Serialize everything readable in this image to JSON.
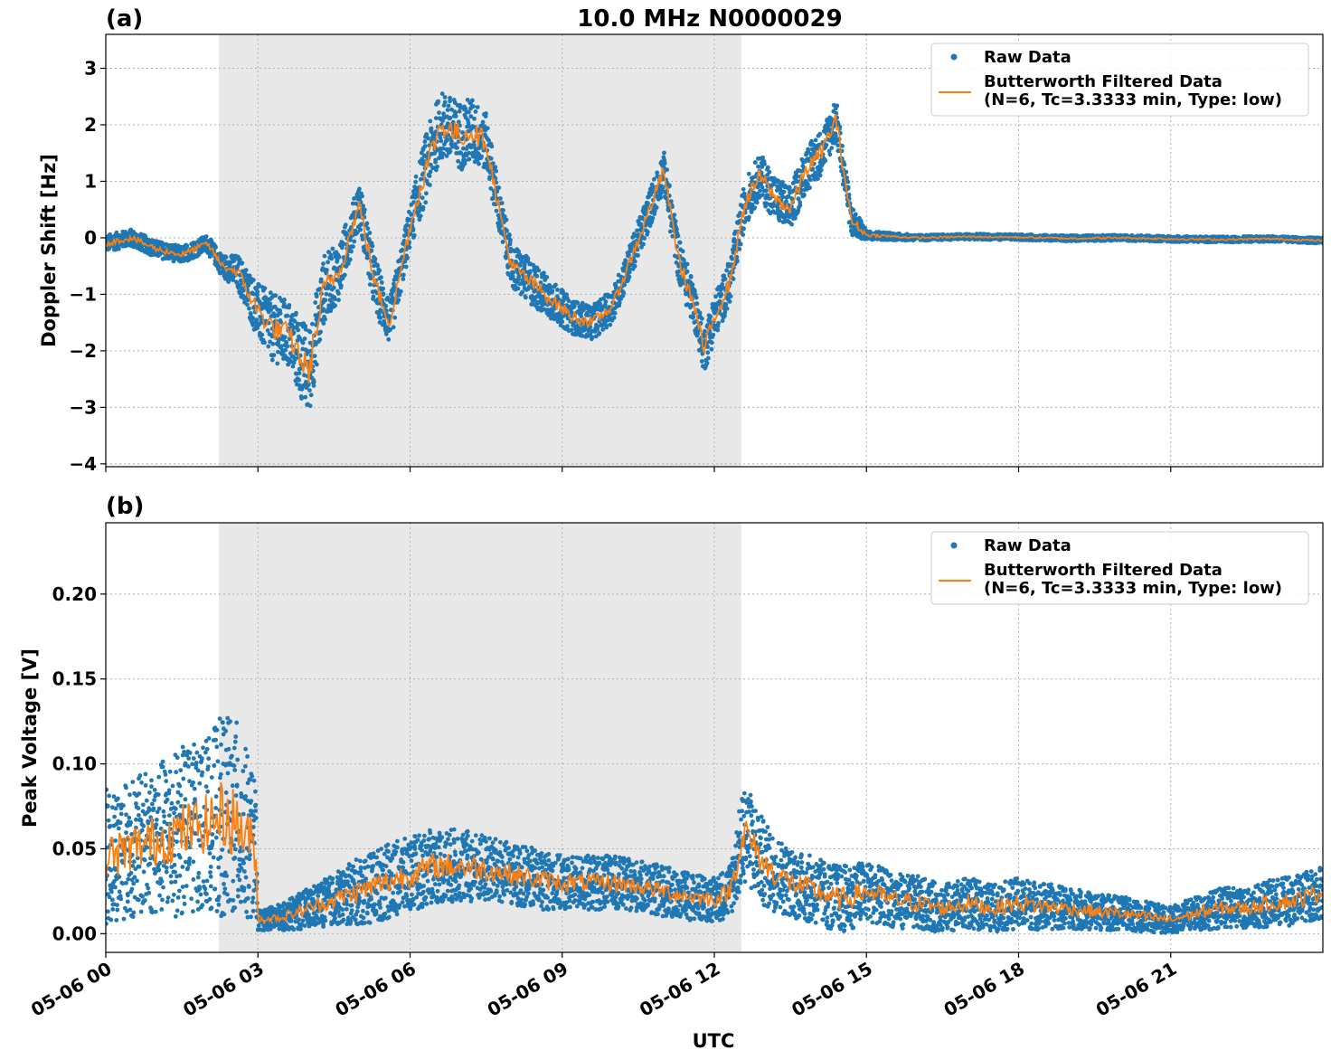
{
  "figure": {
    "title": "10.0 MHz N0000029",
    "xlabel": "UTC"
  },
  "chart_data": [
    {
      "type": "scatter",
      "panel_label": "(a)",
      "ylabel": "Doppler Shift [Hz]",
      "ylim": [
        -4.05,
        3.6
      ],
      "yticks": [
        3,
        2,
        1,
        0,
        -1,
        -2,
        -3,
        -4
      ],
      "ytick_labels": [
        "3",
        "2",
        "1",
        "0",
        "−1",
        "−2",
        "−3",
        "−4"
      ],
      "xlim_hours": [
        0,
        24
      ],
      "xtick_labels": [],
      "grid": true,
      "shaded_region_hours": [
        2.23,
        12.53
      ],
      "legend_position": "upper right",
      "series": [
        {
          "name": "Raw Data",
          "style": "dots",
          "color": "#1f77b4",
          "x_hours": [
            0,
            0.5,
            1,
            1.5,
            2,
            2.3,
            2.6,
            3,
            3.3,
            3.6,
            4,
            4.3,
            4.6,
            5,
            5.3,
            5.6,
            6,
            6.3,
            6.6,
            7,
            7.2,
            7.5,
            7.8,
            8,
            8.4,
            8.8,
            9.2,
            9.6,
            10,
            10.3,
            10.6,
            11,
            11.3,
            11.6,
            11.8,
            12,
            12.3,
            12.6,
            12.9,
            13.2,
            13.5,
            13.8,
            14.1,
            14.4,
            14.7,
            15,
            16,
            17,
            18,
            19,
            20,
            21,
            22,
            23,
            24
          ],
          "y": [
            -0.1,
            0,
            -0.2,
            -0.3,
            -0.1,
            -0.5,
            -0.6,
            -1.3,
            -1.6,
            -1.7,
            -2.4,
            -0.9,
            -0.6,
            0.6,
            -0.8,
            -1.5,
            0.2,
            1.2,
            2.0,
            1.8,
            1.9,
            1.7,
            0.3,
            -0.5,
            -0.8,
            -1.1,
            -1.4,
            -1.5,
            -1.2,
            -0.5,
            0.2,
            1.2,
            -0.4,
            -1.2,
            -2.0,
            -1.4,
            -0.8,
            0.6,
            1.1,
            0.7,
            0.5,
            1.2,
            1.5,
            2.1,
            0.3,
            0.05,
            0,
            0.02,
            0.01,
            -0.01,
            0,
            -0.02,
            -0.03,
            -0.02,
            -0.05
          ],
          "spread": [
            0.15,
            0.15,
            0.15,
            0.15,
            0.15,
            0.2,
            0.3,
            0.5,
            0.6,
            0.6,
            0.8,
            0.6,
            0.5,
            0.4,
            0.5,
            0.4,
            0.4,
            0.6,
            0.6,
            0.6,
            0.6,
            0.5,
            0.4,
            0.4,
            0.4,
            0.35,
            0.3,
            0.3,
            0.3,
            0.3,
            0.35,
            0.35,
            0.4,
            0.4,
            0.4,
            0.4,
            0.4,
            0.4,
            0.4,
            0.4,
            0.4,
            0.4,
            0.4,
            0.4,
            0.3,
            0.08,
            0.05,
            0.05,
            0.05,
            0.05,
            0.05,
            0.05,
            0.05,
            0.05,
            0.05
          ]
        },
        {
          "name": "Butterworth Filtered Data\n(N=6, Tc=3.3333 min, Type: low)",
          "style": "line",
          "color": "#ff7f0e",
          "x_hours": [
            0,
            0.5,
            1,
            1.5,
            2,
            2.3,
            2.6,
            3,
            3.3,
            3.6,
            4,
            4.3,
            4.6,
            5,
            5.3,
            5.6,
            6,
            6.3,
            6.6,
            7,
            7.2,
            7.5,
            7.8,
            8,
            8.4,
            8.8,
            9.2,
            9.6,
            10,
            10.3,
            10.6,
            11,
            11.3,
            11.6,
            11.8,
            12,
            12.3,
            12.6,
            12.9,
            13.2,
            13.5,
            13.8,
            14.1,
            14.4,
            14.7,
            15,
            16,
            17,
            18,
            19,
            20,
            21,
            22,
            23,
            24
          ],
          "y": [
            -0.1,
            0,
            -0.2,
            -0.3,
            -0.1,
            -0.5,
            -0.6,
            -1.3,
            -1.6,
            -1.7,
            -2.4,
            -0.9,
            -0.6,
            0.6,
            -0.8,
            -1.5,
            0.2,
            1.2,
            2.0,
            1.8,
            1.9,
            1.7,
            0.3,
            -0.5,
            -0.8,
            -1.1,
            -1.4,
            -1.5,
            -1.2,
            -0.5,
            0.2,
            1.2,
            -0.4,
            -1.2,
            -2.0,
            -1.4,
            -0.8,
            0.6,
            1.1,
            0.7,
            0.5,
            1.2,
            1.5,
            2.1,
            0.3,
            0.05,
            0,
            0.02,
            0.01,
            -0.01,
            0,
            -0.02,
            -0.03,
            -0.02,
            -0.05
          ]
        }
      ]
    },
    {
      "type": "scatter",
      "panel_label": "(b)",
      "ylabel": "Peak Voltage [V]",
      "ylim": [
        -0.011,
        0.242
      ],
      "yticks": [
        0.2,
        0.15,
        0.1,
        0.05,
        0.0
      ],
      "ytick_labels": [
        "0.20",
        "0.15",
        "0.10",
        "0.05",
        "0.00"
      ],
      "xlim_hours": [
        0,
        24
      ],
      "xticks_hours": [
        0,
        3,
        6,
        9,
        12,
        15,
        18,
        21
      ],
      "xtick_labels": [
        "05-06 00",
        "05-06 03",
        "05-06 06",
        "05-06 09",
        "05-06 12",
        "05-06 15",
        "05-06 18",
        "05-06 21"
      ],
      "grid": true,
      "shaded_region_hours": [
        2.23,
        12.53
      ],
      "legend_position": "upper right",
      "series": [
        {
          "name": "Raw Data",
          "style": "dots",
          "color": "#1f77b4",
          "x_hours": [
            0,
            0.5,
            1,
            1.5,
            2,
            2.3,
            2.6,
            2.95,
            3.0,
            3.5,
            4,
            4.5,
            5,
            5.5,
            6,
            6.5,
            7,
            7.5,
            8,
            8.5,
            9,
            9.5,
            10,
            10.5,
            11,
            11.5,
            12,
            12.3,
            12.6,
            13,
            13.5,
            14,
            14.5,
            15,
            15.5,
            16,
            16.5,
            17,
            17.5,
            18,
            18.5,
            19,
            19.5,
            20,
            20.5,
            21,
            21.5,
            22,
            22.5,
            23,
            23.5,
            24
          ],
          "y": [
            0.045,
            0.05,
            0.055,
            0.06,
            0.065,
            0.07,
            0.065,
            0.05,
            0.008,
            0.01,
            0.015,
            0.02,
            0.025,
            0.03,
            0.035,
            0.04,
            0.04,
            0.038,
            0.035,
            0.032,
            0.03,
            0.03,
            0.03,
            0.028,
            0.025,
            0.022,
            0.02,
            0.025,
            0.06,
            0.04,
            0.03,
            0.025,
            0.02,
            0.025,
            0.02,
            0.018,
            0.015,
            0.018,
            0.015,
            0.018,
            0.016,
            0.015,
            0.013,
            0.012,
            0.01,
            0.008,
            0.012,
            0.015,
            0.015,
            0.018,
            0.02,
            0.025
          ],
          "spread": [
            0.04,
            0.04,
            0.045,
            0.05,
            0.05,
            0.06,
            0.06,
            0.04,
            0.006,
            0.008,
            0.012,
            0.015,
            0.02,
            0.022,
            0.022,
            0.022,
            0.022,
            0.02,
            0.018,
            0.018,
            0.016,
            0.016,
            0.016,
            0.015,
            0.015,
            0.014,
            0.013,
            0.016,
            0.03,
            0.025,
            0.02,
            0.02,
            0.02,
            0.018,
            0.016,
            0.016,
            0.014,
            0.015,
            0.014,
            0.015,
            0.014,
            0.012,
            0.011,
            0.01,
            0.009,
            0.008,
            0.01,
            0.012,
            0.012,
            0.014,
            0.015,
            0.016
          ]
        },
        {
          "name": "Butterworth Filtered Data\n(N=6, Tc=3.3333 min, Type: low)",
          "style": "line",
          "color": "#ff7f0e",
          "x_hours": [
            0,
            0.5,
            1,
            1.5,
            2,
            2.3,
            2.6,
            2.95,
            3.0,
            3.5,
            4,
            4.5,
            5,
            5.5,
            6,
            6.5,
            7,
            7.5,
            8,
            8.5,
            9,
            9.5,
            10,
            10.5,
            11,
            11.5,
            12,
            12.3,
            12.6,
            13,
            13.5,
            14,
            14.5,
            15,
            15.5,
            16,
            16.5,
            17,
            17.5,
            18,
            18.5,
            19,
            19.5,
            20,
            20.5,
            21,
            21.5,
            22,
            22.5,
            23,
            23.5,
            24
          ],
          "y": [
            0.045,
            0.05,
            0.055,
            0.06,
            0.065,
            0.07,
            0.065,
            0.05,
            0.008,
            0.01,
            0.015,
            0.02,
            0.025,
            0.03,
            0.035,
            0.04,
            0.04,
            0.038,
            0.035,
            0.032,
            0.03,
            0.03,
            0.03,
            0.028,
            0.025,
            0.022,
            0.02,
            0.025,
            0.06,
            0.04,
            0.03,
            0.025,
            0.02,
            0.025,
            0.02,
            0.018,
            0.015,
            0.018,
            0.015,
            0.018,
            0.016,
            0.015,
            0.013,
            0.012,
            0.01,
            0.008,
            0.012,
            0.015,
            0.015,
            0.018,
            0.02,
            0.025
          ]
        }
      ]
    }
  ]
}
